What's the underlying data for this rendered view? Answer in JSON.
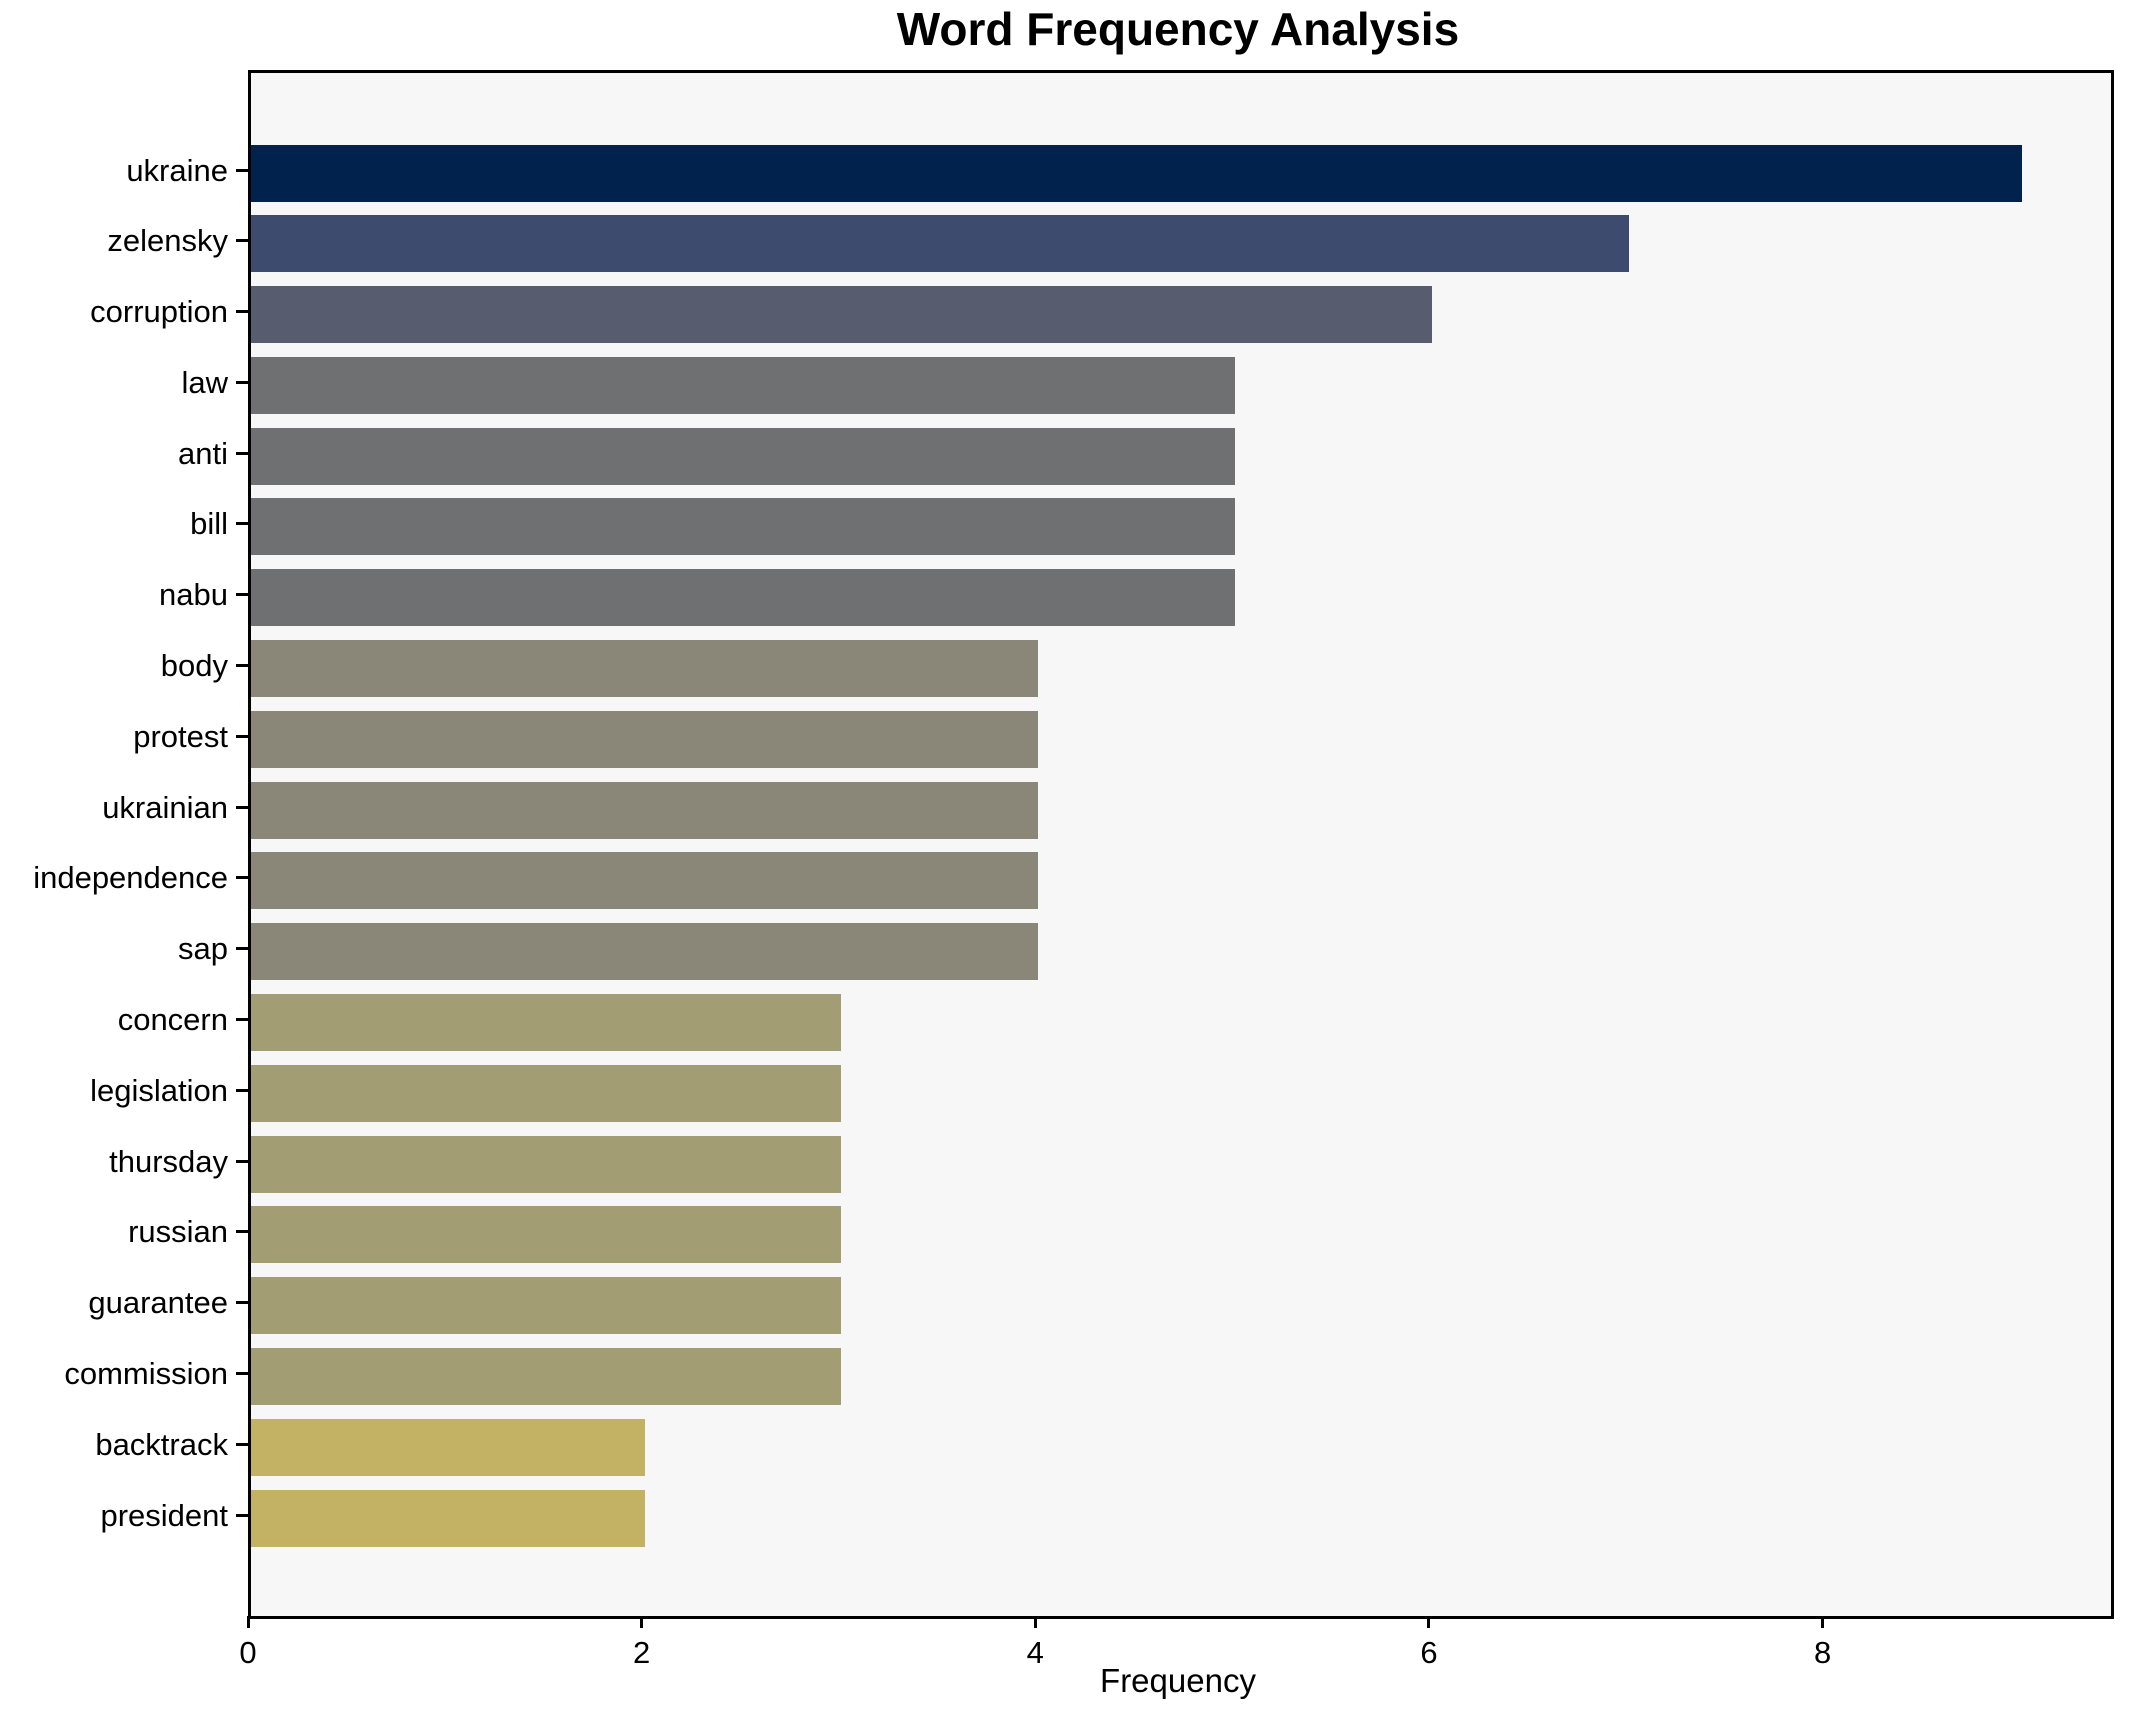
{
  "title": "Word Frequency Analysis",
  "chart_data": {
    "type": "bar",
    "orientation": "horizontal",
    "title": "Word Frequency Analysis",
    "xlabel": "Frequency",
    "ylabel": "",
    "categories": [
      "ukraine",
      "zelensky",
      "corruption",
      "law",
      "anti",
      "bill",
      "nabu",
      "body",
      "protest",
      "ukrainian",
      "independence",
      "sap",
      "concern",
      "legislation",
      "thursday",
      "russian",
      "guarantee",
      "commission",
      "backtrack",
      "president"
    ],
    "values": [
      9,
      7,
      6,
      5,
      5,
      5,
      5,
      4,
      4,
      4,
      4,
      4,
      3,
      3,
      3,
      3,
      3,
      3,
      2,
      2
    ],
    "bar_colors": [
      "#01224c",
      "#3d4b6e",
      "#575d6e",
      "#6f7071",
      "#6f7071",
      "#6f7071",
      "#6f7071",
      "#8a8678",
      "#8a8678",
      "#8a8678",
      "#8a8678",
      "#8a8678",
      "#a39d73",
      "#a39d73",
      "#a39d73",
      "#a39d73",
      "#a39d73",
      "#a39d73",
      "#c4b264",
      "#c4b264"
    ],
    "xticks": [
      0,
      2,
      4,
      6,
      8
    ],
    "xlim": [
      0,
      9.45
    ],
    "grid": false,
    "legend": false,
    "plot_background": "#f7f7f8",
    "figure_background": "#ffffff",
    "frame_color": "#000000",
    "text_color": "#000000"
  }
}
